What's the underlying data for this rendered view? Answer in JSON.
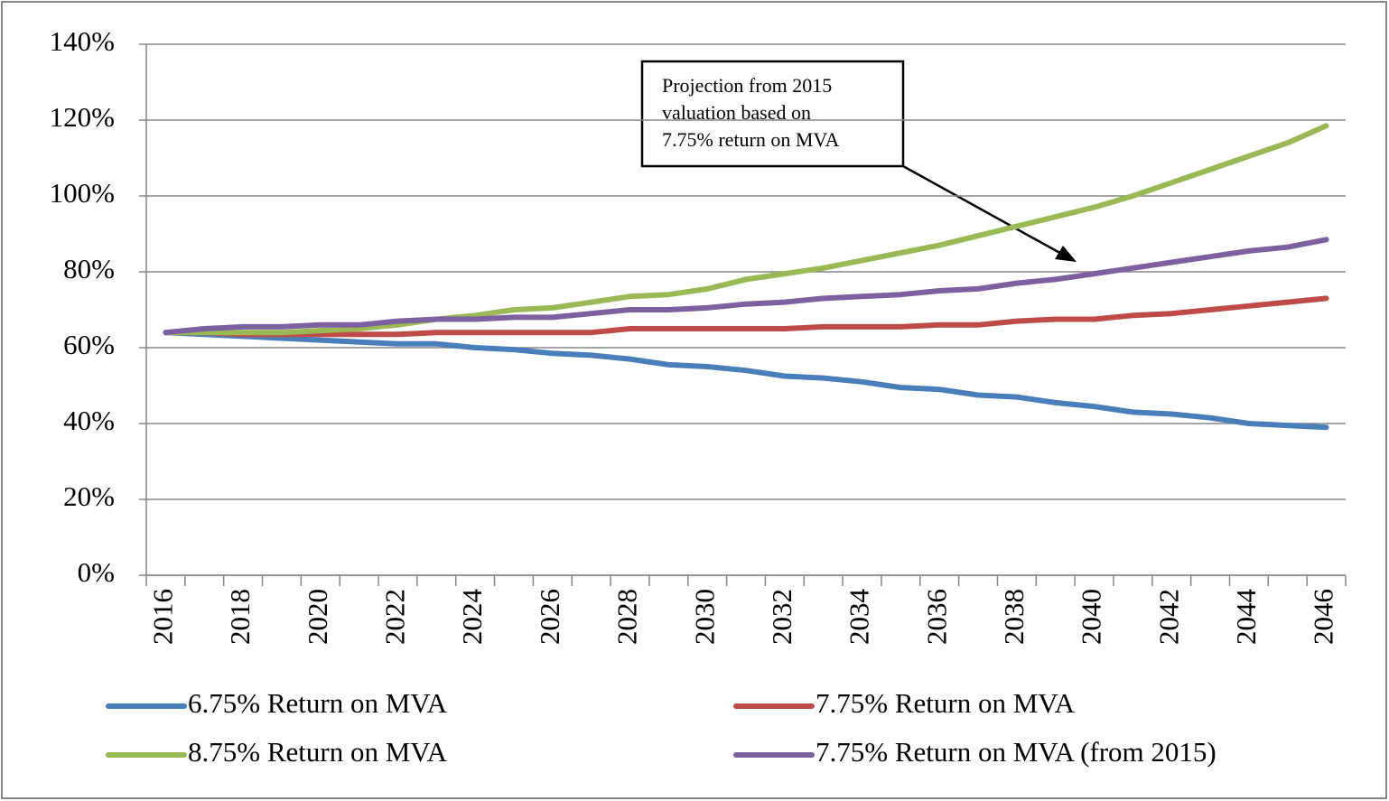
{
  "chart_data": {
    "type": "line",
    "categories": [
      "2016",
      null,
      "2018",
      null,
      "2020",
      null,
      "2022",
      null,
      "2024",
      null,
      "2026",
      null,
      "2028",
      null,
      "2030",
      null,
      "2032",
      null,
      "2034",
      null,
      "2036",
      null,
      "2038",
      null,
      "2040",
      null,
      "2042",
      null,
      "2044",
      null,
      "2046"
    ],
    "series": [
      {
        "name": "6.75% Return on MVA",
        "color": "#4a7ebb",
        "values": [
          64,
          63.5,
          63,
          62.5,
          62,
          61.5,
          61,
          61,
          60,
          59.5,
          58.5,
          58,
          57,
          55.5,
          55,
          54,
          52.5,
          52,
          51,
          49.5,
          49,
          47.5,
          47,
          45.5,
          44.5,
          43,
          42.5,
          41.5,
          40,
          39.5,
          39
        ]
      },
      {
        "name": "7.75% Return on MVA",
        "color": "#be4b48",
        "values": [
          64,
          64,
          63.5,
          63.5,
          63.5,
          63.5,
          63.5,
          64,
          64,
          64,
          64,
          64,
          65,
          65,
          65,
          65,
          65,
          65.5,
          65.5,
          65.5,
          66,
          66,
          67,
          67.5,
          67.5,
          68.5,
          69,
          70,
          71,
          72,
          73
        ]
      },
      {
        "name": "8.75% Return on MVA",
        "color": "#98b954",
        "values": [
          64,
          64,
          64,
          64,
          64.5,
          65,
          66,
          67.5,
          68.5,
          70,
          70.5,
          72,
          73.5,
          74,
          75.5,
          78,
          79.5,
          81,
          83,
          85,
          87,
          89.5,
          92,
          94.5,
          97,
          100,
          103.5,
          107,
          110.5,
          114,
          118.5
        ]
      },
      {
        "name": "7.75% Return on MVA (from 2015)",
        "color": "#7d60a0",
        "values": [
          64,
          65,
          65.5,
          65.5,
          66,
          66,
          67,
          67.5,
          67.5,
          68,
          68,
          69,
          70,
          70,
          70.5,
          71.5,
          72,
          73,
          73.5,
          74,
          75,
          75.5,
          77,
          78,
          79.5,
          81,
          82.5,
          84,
          85.5,
          86.5,
          88.5
        ]
      }
    ],
    "ylim": [
      0,
      140
    ],
    "yticks": [
      {
        "value": 0,
        "label": "0%"
      },
      {
        "value": 20,
        "label": "20%"
      },
      {
        "value": 40,
        "label": "40%"
      },
      {
        "value": 60,
        "label": "60%"
      },
      {
        "value": 80,
        "label": "80%"
      },
      {
        "value": 100,
        "label": "100%"
      },
      {
        "value": 120,
        "label": "120%"
      },
      {
        "value": 140,
        "label": "140%"
      }
    ],
    "grid": true,
    "legend": "bottom",
    "annotation": [
      "Projection from 2015",
      "valuation based on",
      "7.75% return on MVA"
    ]
  }
}
